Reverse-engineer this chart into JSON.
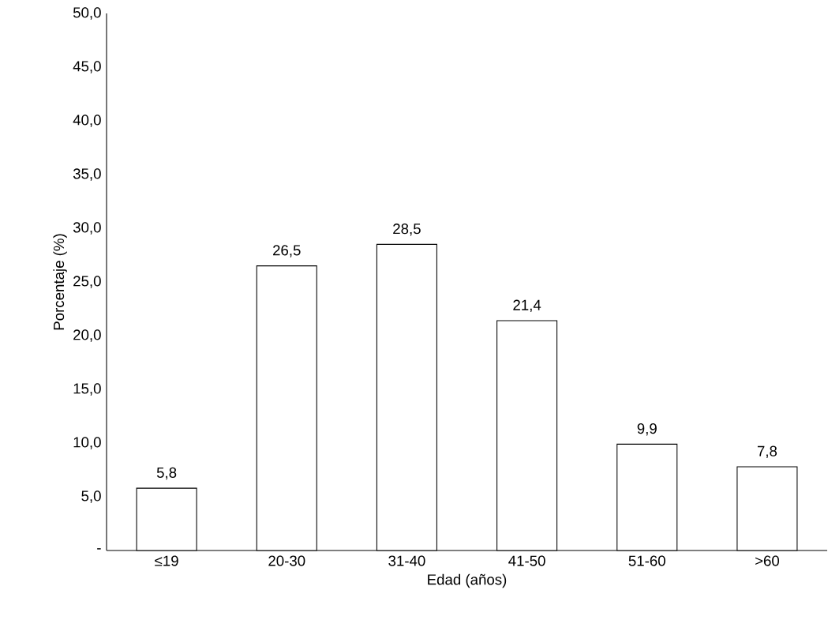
{
  "chart_data": {
    "type": "bar",
    "xlabel": "Edad (años)",
    "ylabel": "Porcentaje (%)",
    "categories": [
      "≤19",
      "20-30",
      "31-40",
      "41-50",
      "51-60",
      ">60"
    ],
    "values": [
      5.8,
      26.5,
      28.5,
      21.4,
      9.9,
      7.8
    ],
    "value_labels": [
      "5,8",
      "26,5",
      "28,5",
      "21,4",
      "9,9",
      "7,8"
    ],
    "color": "#ffffff",
    "ylim": [
      0,
      50
    ],
    "yticks": [
      {
        "value": 0,
        "label": "-"
      },
      {
        "value": 5,
        "label": "5,0"
      },
      {
        "value": 10,
        "label": "10,0"
      },
      {
        "value": 15,
        "label": "15,0"
      },
      {
        "value": 20,
        "label": "20,0"
      },
      {
        "value": 25,
        "label": "25,0"
      },
      {
        "value": 30,
        "label": "30,0"
      },
      {
        "value": 35,
        "label": "35,0"
      },
      {
        "value": 40,
        "label": "40,0"
      },
      {
        "value": 45,
        "label": "45,0"
      },
      {
        "value": 50,
        "label": "50,0"
      }
    ],
    "grid": false
  }
}
